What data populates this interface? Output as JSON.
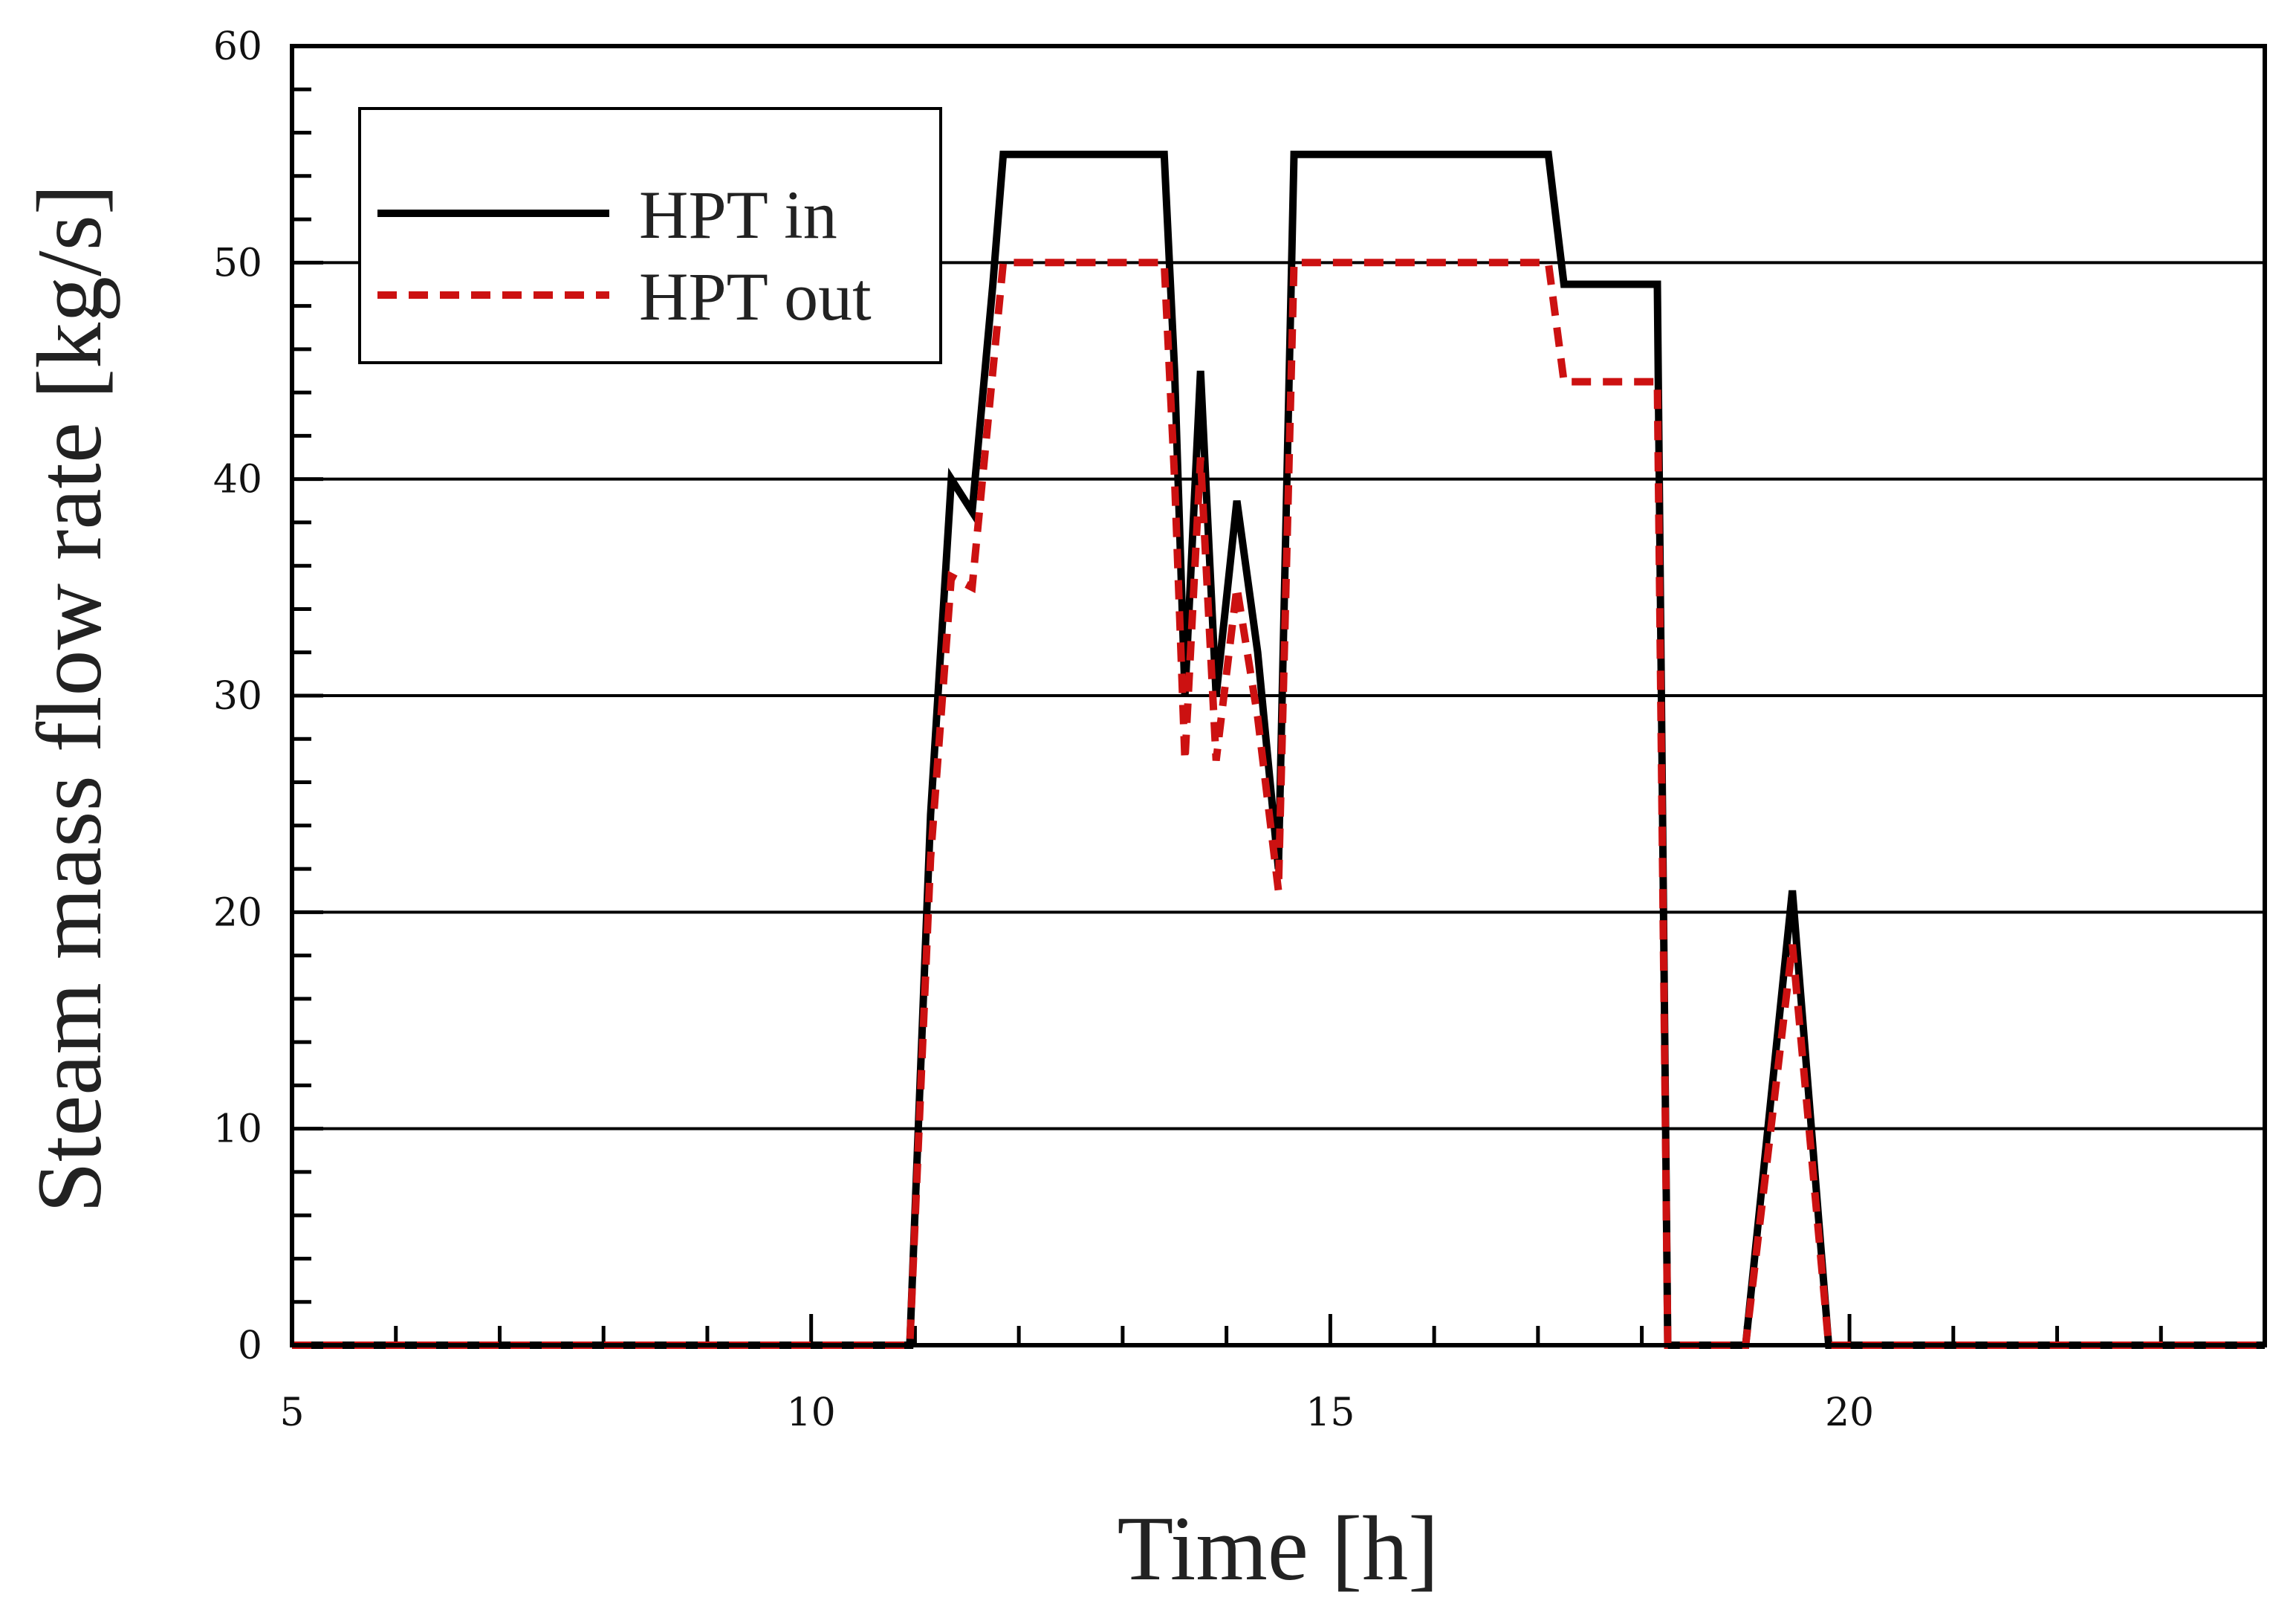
{
  "chart_data": {
    "type": "line",
    "title": "",
    "xlabel": "Time [h]",
    "ylabel": "Steam mass flow rate [kg/s]",
    "xlim": [
      5,
      24
    ],
    "ylim": [
      0,
      60
    ],
    "x_ticks": [
      5,
      10,
      15,
      20
    ],
    "y_ticks": [
      0,
      10,
      20,
      30,
      40,
      50,
      60
    ],
    "x_tick_labels": [
      "5",
      "10",
      "15",
      "20"
    ],
    "y_tick_labels": [
      "0",
      "10",
      "20",
      "30",
      "40",
      "50",
      "60"
    ],
    "grid": "horizontal major gridlines",
    "legend_position": "top-left",
    "series": [
      {
        "name": "HPT in",
        "color": "#000000",
        "style": "solid",
        "x": [
          5,
          10.95,
          11.15,
          11.35,
          11.55,
          11.75,
          11.85,
          13.4,
          13.5,
          13.6,
          13.75,
          13.9,
          14.1,
          14.3,
          14.5,
          14.65,
          17.1,
          17.25,
          18.15,
          18.25,
          19.0,
          19.45,
          19.8,
          24
        ],
        "y": [
          0,
          0,
          24.5,
          40,
          38.5,
          49,
          55,
          55,
          45,
          30,
          45,
          30,
          39,
          32,
          22,
          55,
          55,
          49,
          49,
          0,
          0,
          21,
          0,
          0
        ]
      },
      {
        "name": "HPT out",
        "color": "#cc1111",
        "style": "dashed",
        "x": [
          5,
          10.95,
          11.15,
          11.35,
          11.55,
          11.75,
          11.85,
          13.4,
          13.5,
          13.6,
          13.75,
          13.9,
          14.1,
          14.3,
          14.5,
          14.65,
          17.1,
          17.25,
          18.15,
          18.25,
          19.0,
          19.45,
          19.8,
          24
        ],
        "y": [
          0,
          0,
          22.5,
          35.5,
          35,
          45,
          50,
          50,
          40,
          27,
          41,
          27,
          35,
          29,
          21,
          50,
          50,
          44.5,
          44.5,
          0,
          0,
          18.5,
          0,
          0
        ]
      }
    ]
  }
}
